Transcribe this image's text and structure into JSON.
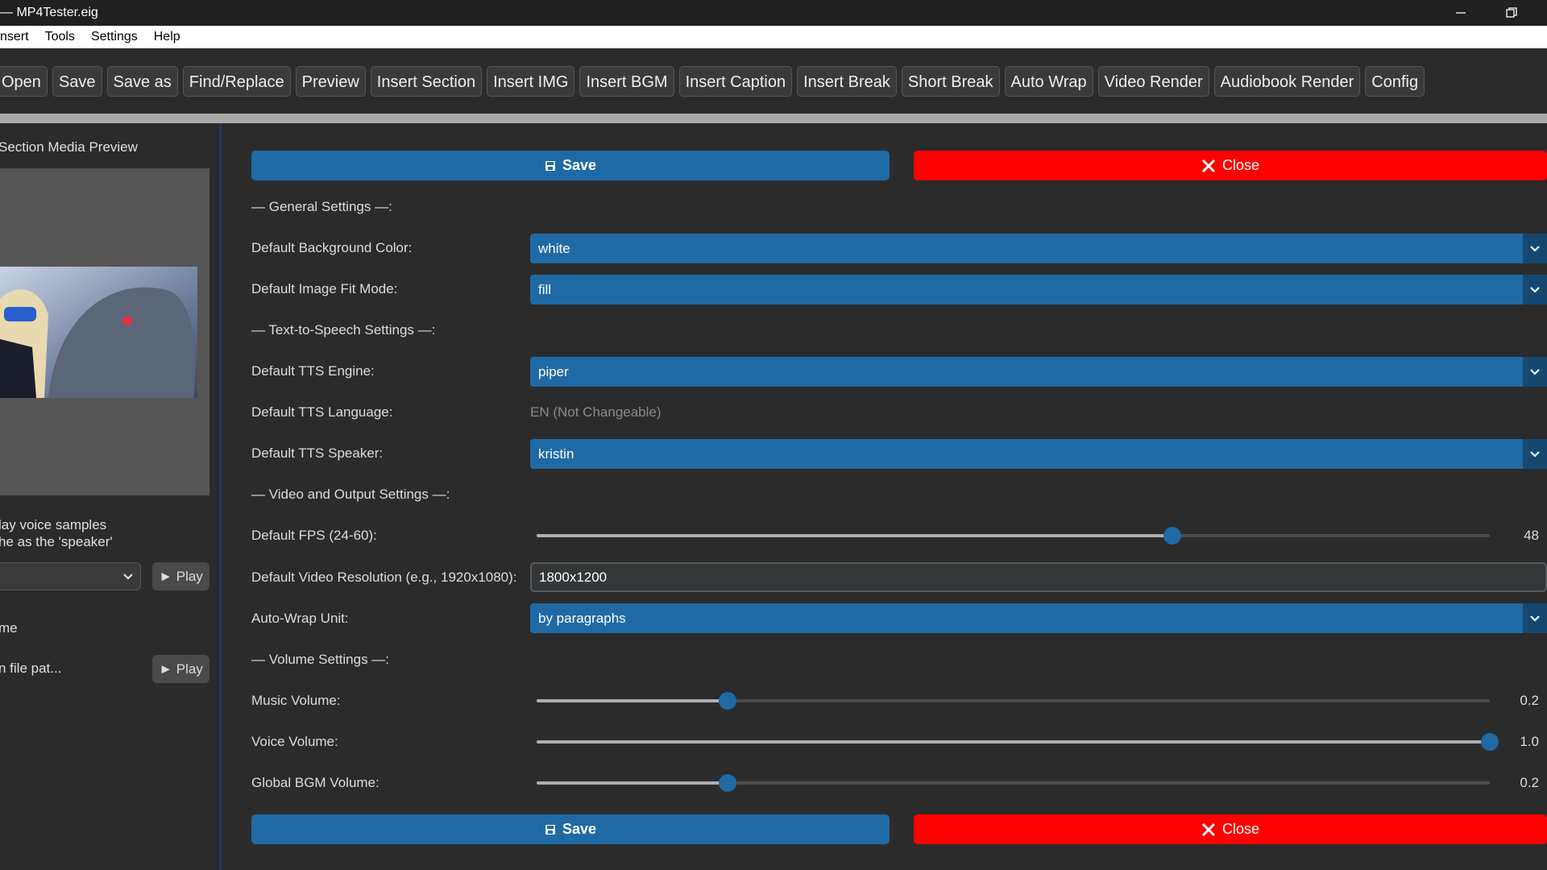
{
  "window": {
    "title": "— MP4Tester.eig"
  },
  "menu": [
    "nsert",
    "Tools",
    "Settings",
    "Help"
  ],
  "toolbar": [
    "Open",
    "Save",
    "Save as",
    "Find/Replace",
    "Preview",
    "Insert Section",
    "Insert IMG",
    "Insert BGM",
    "Insert Caption",
    "Insert Break",
    "Short Break",
    "Auto Wrap",
    "Video Render",
    "Audiobook Render",
    "Config"
  ],
  "left_panel": {
    "title": "Section Media Preview",
    "voice_hint_1": "lay voice samples",
    "voice_hint_2": "he as the 'speaker'",
    "play_1": "► Play",
    "name_label": "me",
    "file_label": "n file pat...",
    "play_2": "► Play"
  },
  "top_buttons": {
    "save": "Save",
    "close": "Close"
  },
  "rows": [
    {
      "kind": "heading",
      "label": "— General Settings —:"
    },
    {
      "kind": "select",
      "label": "Default Background Color:",
      "value": "white"
    },
    {
      "kind": "select",
      "label": "Default Image Fit Mode:",
      "value": "fill"
    },
    {
      "kind": "heading",
      "label": "— Text-to-Speech Settings —:"
    },
    {
      "kind": "select",
      "label": "Default TTS Engine:",
      "value": "piper"
    },
    {
      "kind": "static",
      "label": "Default TTS Language:",
      "value": "EN (Not Changeable)"
    },
    {
      "kind": "select",
      "label": "Default TTS Speaker:",
      "value": "kristin"
    },
    {
      "kind": "heading",
      "label": "— Video and Output Settings —:"
    },
    {
      "kind": "slider",
      "label": "Default FPS (24-60):",
      "value": 48,
      "min": 24,
      "max": 60
    },
    {
      "kind": "input",
      "label": "Default Video Resolution (e.g., 1920x1080):",
      "value": "1800x1200"
    },
    {
      "kind": "select",
      "label": "Auto-Wrap Unit:",
      "value": "by paragraphs"
    },
    {
      "kind": "heading",
      "label": "— Volume Settings —:"
    },
    {
      "kind": "slider",
      "label": "Music Volume:",
      "value": 0.2,
      "min": 0,
      "max": 1
    },
    {
      "kind": "slider",
      "label": "Voice Volume:",
      "value": 1,
      "value_label": "1.0",
      "min": 0,
      "max": 1
    },
    {
      "kind": "slider",
      "label": "Global BGM Volume:",
      "value": 0.2,
      "min": 0,
      "max": 1
    }
  ],
  "bottom_buttons": {
    "save": "Save",
    "close": "Close"
  }
}
